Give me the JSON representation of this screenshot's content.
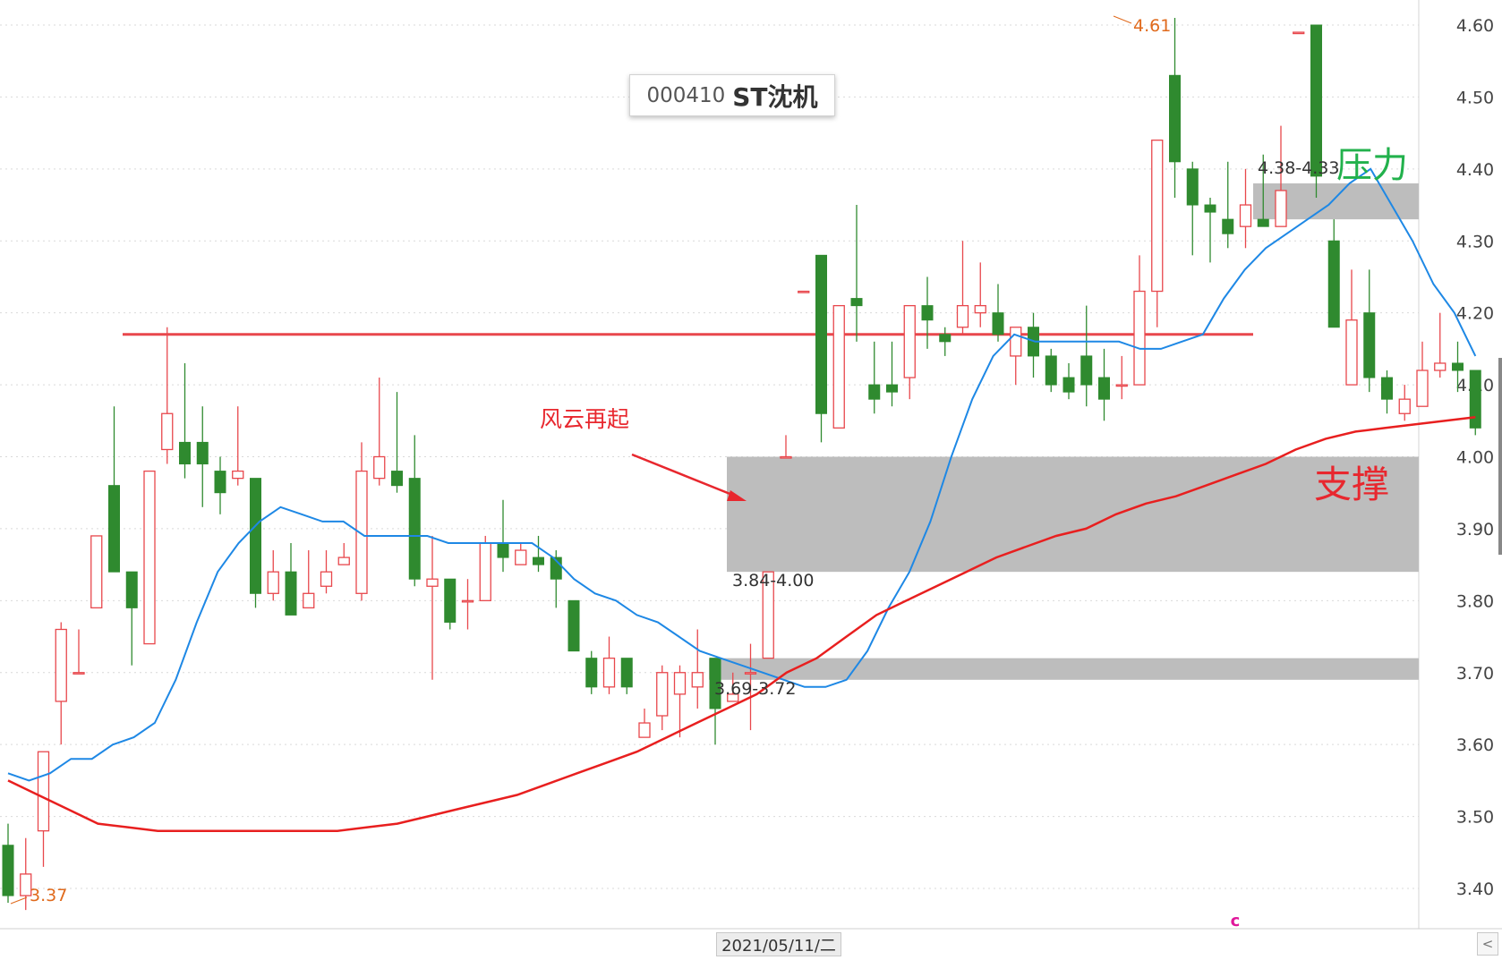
{
  "stock": {
    "code": "000410",
    "name": "ST沈机"
  },
  "current_date": "2021/05/11/二",
  "chart_data": {
    "type": "candlestick",
    "ylim": [
      3.35,
      4.63
    ],
    "yticks": [
      "4.60",
      "4.50",
      "4.40",
      "4.30",
      "4.20",
      "4.10",
      "4.00",
      "3.90",
      "3.80",
      "3.70",
      "3.60",
      "3.50",
      "3.40"
    ],
    "grid": true,
    "candles": [
      [
        3.46,
        3.39,
        3.49,
        3.38
      ],
      [
        3.39,
        3.42,
        3.47,
        3.37
      ],
      [
        3.48,
        3.59,
        3.59,
        3.43
      ],
      [
        3.66,
        3.76,
        3.77,
        3.6
      ],
      [
        3.7,
        3.7,
        3.76,
        3.7
      ],
      [
        3.79,
        3.89,
        3.89,
        3.79
      ],
      [
        3.96,
        3.84,
        4.07,
        3.84
      ],
      [
        3.84,
        3.79,
        3.84,
        3.71
      ],
      [
        3.74,
        3.98,
        3.98,
        3.74
      ],
      [
        4.01,
        4.06,
        4.18,
        3.99
      ],
      [
        4.02,
        3.99,
        4.13,
        3.97
      ],
      [
        4.02,
        3.99,
        4.07,
        3.93
      ],
      [
        3.98,
        3.95,
        4.0,
        3.92
      ],
      [
        3.97,
        3.98,
        4.07,
        3.96
      ],
      [
        3.97,
        3.81,
        3.97,
        3.79
      ],
      [
        3.81,
        3.84,
        3.87,
        3.8
      ],
      [
        3.84,
        3.78,
        3.88,
        3.78
      ],
      [
        3.79,
        3.81,
        3.87,
        3.8
      ],
      [
        3.82,
        3.84,
        3.87,
        3.81
      ],
      [
        3.85,
        3.86,
        3.88,
        3.85
      ],
      [
        3.81,
        3.98,
        4.02,
        3.8
      ],
      [
        3.97,
        4.0,
        4.11,
        3.96
      ],
      [
        3.98,
        3.96,
        4.09,
        3.95
      ],
      [
        3.97,
        3.83,
        4.03,
        3.82
      ],
      [
        3.82,
        3.83,
        3.89,
        3.69
      ],
      [
        3.83,
        3.77,
        3.83,
        3.76
      ],
      [
        3.8,
        3.8,
        3.83,
        3.76
      ],
      [
        3.8,
        3.88,
        3.89,
        3.8
      ],
      [
        3.88,
        3.86,
        3.94,
        3.84
      ],
      [
        3.85,
        3.87,
        3.88,
        3.85
      ],
      [
        3.86,
        3.85,
        3.89,
        3.84
      ],
      [
        3.86,
        3.83,
        3.87,
        3.79
      ],
      [
        3.8,
        3.73,
        3.8,
        3.73
      ],
      [
        3.72,
        3.68,
        3.73,
        3.67
      ],
      [
        3.68,
        3.72,
        3.75,
        3.67
      ],
      [
        3.72,
        3.68,
        3.72,
        3.67
      ],
      [
        3.61,
        3.63,
        3.65,
        3.61
      ],
      [
        3.64,
        3.7,
        3.71,
        3.62
      ],
      [
        3.67,
        3.7,
        3.71,
        3.61
      ],
      [
        3.68,
        3.7,
        3.76,
        3.65
      ],
      [
        3.72,
        3.65,
        3.72,
        3.6
      ],
      [
        3.66,
        3.67,
        3.7,
        3.66
      ],
      [
        3.7,
        3.7,
        3.74,
        3.62
      ],
      [
        3.72,
        3.84,
        3.84,
        3.72
      ],
      [
        4.0,
        4.0,
        4.03,
        4.0
      ],
      [
        4.23,
        4.23,
        4.23,
        4.23
      ],
      [
        4.28,
        4.06,
        4.28,
        4.02
      ],
      [
        4.04,
        4.21,
        4.21,
        4.04
      ],
      [
        4.22,
        4.21,
        4.35,
        4.16
      ],
      [
        4.1,
        4.08,
        4.16,
        4.06
      ],
      [
        4.1,
        4.09,
        4.16,
        4.07
      ],
      [
        4.11,
        4.21,
        4.21,
        4.08
      ],
      [
        4.21,
        4.19,
        4.25,
        4.15
      ],
      [
        4.17,
        4.16,
        4.18,
        4.14
      ],
      [
        4.18,
        4.21,
        4.3,
        4.17
      ],
      [
        4.2,
        4.21,
        4.27,
        4.18
      ],
      [
        4.2,
        4.17,
        4.24,
        4.16
      ],
      [
        4.14,
        4.18,
        4.18,
        4.1
      ],
      [
        4.18,
        4.14,
        4.2,
        4.11
      ],
      [
        4.14,
        4.1,
        4.15,
        4.09
      ],
      [
        4.11,
        4.09,
        4.13,
        4.08
      ],
      [
        4.14,
        4.1,
        4.21,
        4.07
      ],
      [
        4.11,
        4.08,
        4.15,
        4.05
      ],
      [
        4.1,
        4.1,
        4.14,
        4.08
      ],
      [
        4.1,
        4.23,
        4.28,
        4.1
      ],
      [
        4.23,
        4.44,
        4.44,
        4.18
      ],
      [
        4.53,
        4.41,
        4.61,
        4.36
      ],
      [
        4.4,
        4.35,
        4.41,
        4.28
      ],
      [
        4.35,
        4.34,
        4.36,
        4.27
      ],
      [
        4.33,
        4.31,
        4.41,
        4.29
      ],
      [
        4.32,
        4.35,
        4.4,
        4.29
      ],
      [
        4.33,
        4.32,
        4.42,
        4.32
      ],
      [
        4.32,
        4.37,
        4.46,
        4.32
      ],
      [
        4.59,
        4.59,
        4.59,
        4.59
      ],
      [
        4.6,
        4.39,
        4.6,
        4.36
      ],
      [
        4.3,
        4.18,
        4.33,
        4.18
      ],
      [
        4.1,
        4.19,
        4.26,
        4.1
      ],
      [
        4.2,
        4.11,
        4.26,
        4.09
      ],
      [
        4.11,
        4.08,
        4.12,
        4.06
      ],
      [
        4.06,
        4.08,
        4.1,
        4.05
      ],
      [
        4.07,
        4.12,
        4.16,
        4.07
      ],
      [
        4.12,
        4.13,
        4.2,
        4.11
      ],
      [
        4.13,
        4.12,
        4.16,
        4.09
      ],
      [
        4.12,
        4.04,
        4.12,
        4.03
      ]
    ],
    "ma_short": [
      3.56,
      3.55,
      3.56,
      3.58,
      3.58,
      3.6,
      3.61,
      3.63,
      3.69,
      3.77,
      3.84,
      3.88,
      3.91,
      3.93,
      3.92,
      3.91,
      3.91,
      3.89,
      3.89,
      3.89,
      3.89,
      3.88,
      3.88,
      3.88,
      3.88,
      3.88,
      3.86,
      3.83,
      3.81,
      3.8,
      3.78,
      3.77,
      3.75,
      3.73,
      3.72,
      3.71,
      3.7,
      3.69,
      3.68,
      3.68,
      3.69,
      3.73,
      3.79,
      3.84,
      3.91,
      4.0,
      4.08,
      4.14,
      4.17,
      4.16,
      4.16,
      4.16,
      4.16,
      4.16,
      4.15,
      4.15,
      4.16,
      4.17,
      4.22,
      4.26,
      4.29,
      4.31,
      4.33,
      4.35,
      4.38,
      4.4,
      4.35,
      4.3,
      4.24,
      4.2,
      4.14
    ],
    "ma_short_start": 0,
    "ma_long": [
      3.55,
      3.53,
      3.51,
      3.49,
      3.485,
      3.48,
      3.48,
      3.48,
      3.48,
      3.48,
      3.48,
      3.48,
      3.485,
      3.49,
      3.5,
      3.51,
      3.52,
      3.53,
      3.545,
      3.56,
      3.575,
      3.59,
      3.61,
      3.63,
      3.65,
      3.67,
      3.7,
      3.72,
      3.75,
      3.78,
      3.8,
      3.82,
      3.84,
      3.86,
      3.875,
      3.89,
      3.9,
      3.92,
      3.935,
      3.945,
      3.96,
      3.975,
      3.99,
      4.01,
      4.025,
      4.035,
      4.04,
      4.045,
      4.05,
      4.055
    ],
    "annotations": {
      "high_label": "4.61",
      "low_label": "3.37",
      "resist_label": "4.38-4.33",
      "support_mid_label": "3.84-4.00",
      "support_low_label": "3.69-3.72",
      "arrow_text": "风云再起",
      "resist_text": "压力",
      "support_text": "支撑",
      "misc_glyph": "c"
    },
    "colors": {
      "up": "#e8474c",
      "down": "#2f8a2f",
      "ma_short": "#1e88e5",
      "ma_long": "#e81f1f",
      "zone": "#bdbdbd",
      "trend": "#e8474c",
      "resist_text": "#22b14c",
      "support_text": "#e8272e",
      "label_orange": "#e06a1c"
    }
  }
}
